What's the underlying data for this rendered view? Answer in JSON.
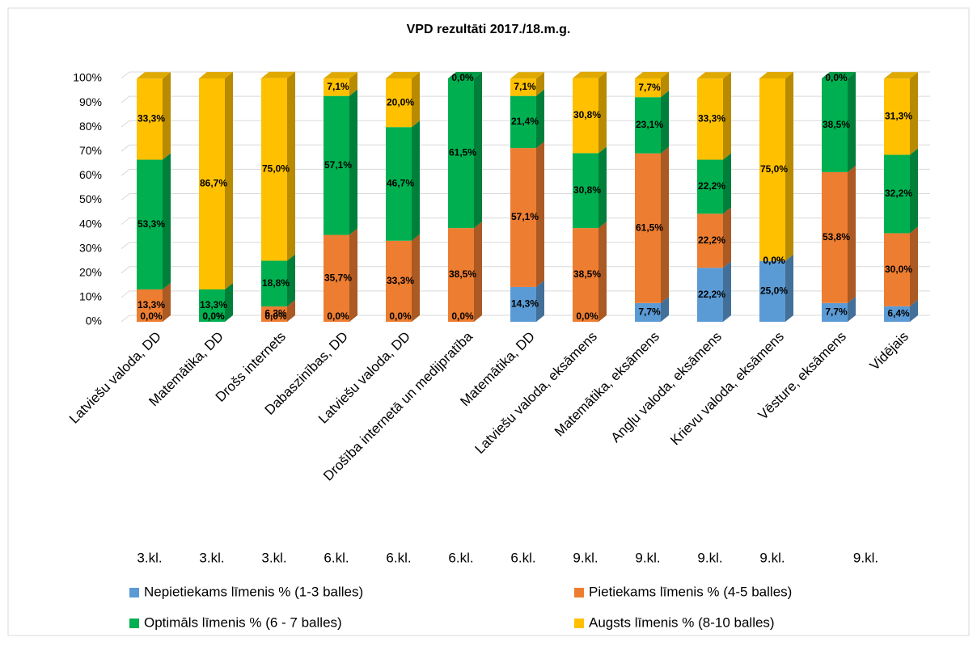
{
  "chart_data": {
    "type": "bar3d_stacked",
    "title": "VPD rezultāti 2017./18.m.g.",
    "categories": [
      "Latviešu valoda, DD",
      "Matemātika, DD",
      "Drošs internets",
      "Dabaszinības, DD",
      "Latviešu valoda, DD",
      "Drošība internetā un medijpratība",
      "Matemātika, DD",
      "Latviešu valoda, eksāmens",
      "Matemātika, eksāmens",
      "Angļu valoda, eksāmens",
      "Krievu valoda, eksāmens",
      "Vēsture, eksāmens",
      "Vidējais"
    ],
    "grade_labels": [
      "3.kl.",
      "3.kl.",
      "3.kl.",
      "6.kl.",
      "6.kl.",
      "6.kl.",
      "6.kl.",
      "9.kl.",
      "9.kl.",
      "9.kl.",
      "9.kl.",
      "9.kl."
    ],
    "ylim": [
      0,
      100
    ],
    "yticks": [
      {
        "value": 0,
        "label": "0%"
      },
      {
        "value": 10,
        "label": "10%"
      },
      {
        "value": 20,
        "label": "20%"
      },
      {
        "value": 30,
        "label": "30%"
      },
      {
        "value": 40,
        "label": "40%"
      },
      {
        "value": 50,
        "label": "50%"
      },
      {
        "value": 60,
        "label": "60%"
      },
      {
        "value": 70,
        "label": "70%"
      },
      {
        "value": 80,
        "label": "80%"
      },
      {
        "value": 90,
        "label": "90%"
      },
      {
        "value": 100,
        "label": "100%"
      }
    ],
    "grid": true,
    "legend": "bottom",
    "series": [
      {
        "name": "Nepietiekams līmenis % (1-3 balles)",
        "color": "#5b9bd5",
        "values": [
          0,
          0,
          0,
          0,
          0,
          0,
          14.3,
          0,
          7.7,
          22.2,
          25.0,
          7.7,
          6.4
        ],
        "value_labels": [
          "0,0%",
          "0,0%",
          "0,0%",
          "0,0%",
          "0,0%",
          "0,0%",
          "14,3%",
          "0,0%",
          "7,7%",
          "22,2%",
          "25,0%",
          "7,7%",
          "6,4%"
        ]
      },
      {
        "name": "Pietiekams līmenis % (4-5 balles)",
        "color": "#ed7d31",
        "values": [
          13.3,
          0,
          6.3,
          35.7,
          33.3,
          38.5,
          57.1,
          38.5,
          61.5,
          22.2,
          0.0,
          53.8,
          30.0
        ],
        "value_labels": [
          "13,3%",
          "0,0%",
          "6,3%",
          "35,7%",
          "33,3%",
          "38,5%",
          "57,1%",
          "38,5%",
          "61,5%",
          "22,2%",
          "0,0%",
          "53,8%",
          "30,0%"
        ]
      },
      {
        "name": "Optimāls līmenis % (6 - 7 balles)",
        "color": "#00b050",
        "values": [
          53.3,
          13.3,
          18.8,
          57.1,
          46.7,
          61.5,
          21.4,
          30.8,
          23.1,
          22.2,
          0.0,
          38.5,
          32.2
        ],
        "value_labels": [
          "53,3%",
          "13,3%",
          "18,8%",
          "57,1%",
          "46,7%",
          "61,5%",
          "21,4%",
          "30,8%",
          "23,1%",
          "22,2%",
          "0,0%",
          "38,5%",
          "32,2%"
        ]
      },
      {
        "name": "Augsts līmenis % (8-10 balles)",
        "color": "#ffc000",
        "values": [
          33.3,
          86.7,
          75.0,
          7.1,
          20.0,
          0.0,
          7.1,
          30.8,
          7.7,
          33.3,
          75.0,
          0.0,
          31.3
        ],
        "value_labels": [
          "33,3%",
          "86,7%",
          "75,0%",
          "7,1%",
          "20,0%",
          "0,0%",
          "7,1%",
          "30,8%",
          "7,7%",
          "33,3%",
          "75,0%",
          "0,0%",
          "31,3%"
        ]
      }
    ]
  }
}
